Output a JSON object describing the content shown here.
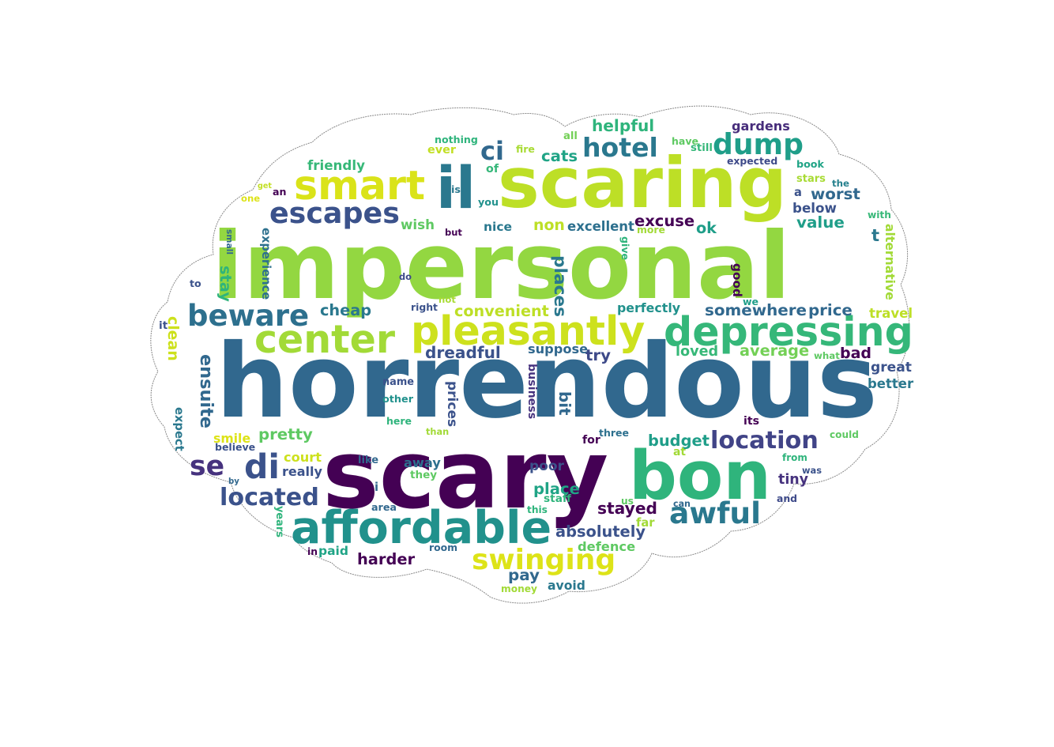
{
  "words": [
    {
      "text": "impersonal",
      "color": "#93d741",
      "rotation": 0
    },
    {
      "text": "horrendous",
      "color": "#31688e",
      "rotation": 0
    },
    {
      "text": "scary",
      "color": "#440154",
      "rotation": 0
    },
    {
      "text": "scaring",
      "color": "#bddf26",
      "rotation": 0
    },
    {
      "text": "il",
      "color": "#2a788e",
      "rotation": 0
    },
    {
      "text": "bon",
      "color": "#2fb47c",
      "rotation": 0
    },
    {
      "text": "affordable",
      "color": "#21918c",
      "rotation": 0
    },
    {
      "text": "pleasantly",
      "color": "#cde11d",
      "rotation": 0
    },
    {
      "text": "depressing",
      "color": "#35b779",
      "rotation": 0
    },
    {
      "text": "smart",
      "color": "#dae319",
      "rotation": 0
    },
    {
      "text": "center",
      "color": "#a2da37",
      "rotation": 0
    },
    {
      "text": "escapes",
      "color": "#3b528b",
      "rotation": 0
    },
    {
      "text": "dump",
      "color": "#1f9e89",
      "rotation": 0
    },
    {
      "text": "hotel",
      "color": "#2a788e",
      "rotation": 0
    },
    {
      "text": "beware",
      "color": "#2d708e",
      "rotation": 0
    },
    {
      "text": "awful",
      "color": "#2a788e",
      "rotation": 0
    },
    {
      "text": "location",
      "color": "#414487",
      "rotation": 0
    },
    {
      "text": "swinging",
      "color": "#dde318",
      "rotation": 0
    },
    {
      "text": "located",
      "color": "#3b528b",
      "rotation": 0
    },
    {
      "text": "di",
      "color": "#3b528b",
      "rotation": 0
    },
    {
      "text": "ensuite",
      "color": "#31688e",
      "rotation": 90
    },
    {
      "text": "se",
      "color": "#46327e",
      "rotation": 0
    },
    {
      "text": "ci",
      "color": "#31688e",
      "rotation": 0
    },
    {
      "text": "helpful",
      "color": "#2fb47c",
      "rotation": 0
    },
    {
      "text": "gardens",
      "color": "#472d7b",
      "rotation": 0
    },
    {
      "text": "nothing",
      "color": "#2fb47c",
      "rotation": 0
    },
    {
      "text": "all",
      "color": "#73d056",
      "rotation": 0
    },
    {
      "text": "have",
      "color": "#5ec962",
      "rotation": 0
    },
    {
      "text": "still",
      "color": "#35b779",
      "rotation": 0
    },
    {
      "text": "ever",
      "color": "#c2df23",
      "rotation": 0
    },
    {
      "text": "fire",
      "color": "#a8db34",
      "rotation": 0
    },
    {
      "text": "cats",
      "color": "#20a486",
      "rotation": 0
    },
    {
      "text": "expected",
      "color": "#3e4a89",
      "rotation": 0
    },
    {
      "text": "friendly",
      "color": "#37b878",
      "rotation": 0
    },
    {
      "text": "of",
      "color": "#35b779",
      "rotation": 0
    },
    {
      "text": "book",
      "color": "#20a486",
      "rotation": 0
    },
    {
      "text": "stars",
      "color": "#a8db34",
      "rotation": 0
    },
    {
      "text": "the",
      "color": "#26818e",
      "rotation": 0
    },
    {
      "text": "get",
      "color": "#c2df23",
      "rotation": 0
    },
    {
      "text": "an",
      "color": "#440154",
      "rotation": 0
    },
    {
      "text": "is",
      "color": "#2a788e",
      "rotation": 0
    },
    {
      "text": "you",
      "color": "#21918c",
      "rotation": 0
    },
    {
      "text": "one",
      "color": "#dde318",
      "rotation": 0
    },
    {
      "text": "a",
      "color": "#3b528b",
      "rotation": 0
    },
    {
      "text": "worst",
      "color": "#31688e",
      "rotation": 0
    },
    {
      "text": "below",
      "color": "#3b528b",
      "rotation": 0
    },
    {
      "text": "wish",
      "color": "#5ec962",
      "rotation": 0
    },
    {
      "text": "nice",
      "color": "#2a788e",
      "rotation": 0
    },
    {
      "text": "non",
      "color": "#bddf26",
      "rotation": 0
    },
    {
      "text": "excuse",
      "color": "#440154",
      "rotation": 0
    },
    {
      "text": "ok",
      "color": "#1f9e89",
      "rotation": 0
    },
    {
      "text": "value",
      "color": "#1f9e89",
      "rotation": 0
    },
    {
      "text": "with",
      "color": "#37b878",
      "rotation": 0
    },
    {
      "text": "small",
      "color": "#31688e",
      "rotation": 90
    },
    {
      "text": "but",
      "color": "#440154",
      "rotation": 0
    },
    {
      "text": "excellent",
      "color": "#2d708e",
      "rotation": 0
    },
    {
      "text": "more",
      "color": "#a2da37",
      "rotation": 0
    },
    {
      "text": "t",
      "color": "#2a788e",
      "rotation": 0
    },
    {
      "text": "alternative",
      "color": "#a2da37",
      "rotation": 90
    },
    {
      "text": "experience",
      "color": "#2d708e",
      "rotation": 90
    },
    {
      "text": "give",
      "color": "#2fb47c",
      "rotation": 90
    },
    {
      "text": "good",
      "color": "#440154",
      "rotation": 90
    },
    {
      "text": "to",
      "color": "#3b528b",
      "rotation": 0
    },
    {
      "text": "stay",
      "color": "#2fb47c",
      "rotation": 90
    },
    {
      "text": "do",
      "color": "#3e4a89",
      "rotation": 0
    },
    {
      "text": "places",
      "color": "#2a788e",
      "rotation": 90
    },
    {
      "text": "not",
      "color": "#a8db34",
      "rotation": 0
    },
    {
      "text": "right",
      "color": "#3b528b",
      "rotation": 0
    },
    {
      "text": "we",
      "color": "#1f9e89",
      "rotation": 0
    },
    {
      "text": "cheap",
      "color": "#2a788e",
      "rotation": 0
    },
    {
      "text": "convenient",
      "color": "#bddf26",
      "rotation": 0
    },
    {
      "text": "perfectly",
      "color": "#21918c",
      "rotation": 0
    },
    {
      "text": "somewhere",
      "color": "#31688e",
      "rotation": 0
    },
    {
      "text": "price",
      "color": "#31688e",
      "rotation": 0
    },
    {
      "text": "travel",
      "color": "#bddf26",
      "rotation": 0
    },
    {
      "text": "it",
      "color": "#3b528b",
      "rotation": 0
    },
    {
      "text": "clean",
      "color": "#cde11d",
      "rotation": 90
    },
    {
      "text": "dreadful",
      "color": "#3b528b",
      "rotation": 0
    },
    {
      "text": "suppose",
      "color": "#31688e",
      "rotation": 0
    },
    {
      "text": "try",
      "color": "#3e4a89",
      "rotation": 0
    },
    {
      "text": "loved",
      "color": "#37b878",
      "rotation": 0
    },
    {
      "text": "average",
      "color": "#73d056",
      "rotation": 0
    },
    {
      "text": "bad",
      "color": "#440154",
      "rotation": 0
    },
    {
      "text": "what",
      "color": "#5ec962",
      "rotation": 0
    },
    {
      "text": "great",
      "color": "#3b528b",
      "rotation": 0
    },
    {
      "text": "better",
      "color": "#2a788e",
      "rotation": 0
    },
    {
      "text": "name",
      "color": "#3b528b",
      "rotation": 0
    },
    {
      "text": "other",
      "color": "#21918c",
      "rotation": 0
    },
    {
      "text": "business",
      "color": "#46327e",
      "rotation": 90
    },
    {
      "text": "prices",
      "color": "#3b528b",
      "rotation": 90
    },
    {
      "text": "bit",
      "color": "#31688e",
      "rotation": 90
    },
    {
      "text": "here",
      "color": "#2fb47c",
      "rotation": 0
    },
    {
      "text": "its",
      "color": "#440154",
      "rotation": 0
    },
    {
      "text": "expect",
      "color": "#2a788e",
      "rotation": 90
    },
    {
      "text": "smile",
      "color": "#dde318",
      "rotation": 0
    },
    {
      "text": "pretty",
      "color": "#5ec962",
      "rotation": 0
    },
    {
      "text": "than",
      "color": "#a2da37",
      "rotation": 0
    },
    {
      "text": "for",
      "color": "#440154",
      "rotation": 0
    },
    {
      "text": "three",
      "color": "#2d708e",
      "rotation": 0
    },
    {
      "text": "budget",
      "color": "#1f9e89",
      "rotation": 0
    },
    {
      "text": "could",
      "color": "#5ec962",
      "rotation": 0
    },
    {
      "text": "believe",
      "color": "#3b528b",
      "rotation": 0
    },
    {
      "text": "court",
      "color": "#cde11d",
      "rotation": 0
    },
    {
      "text": "like",
      "color": "#31688e",
      "rotation": 0
    },
    {
      "text": "at",
      "color": "#a2da37",
      "rotation": 0
    },
    {
      "text": "from",
      "color": "#2fb47c",
      "rotation": 0
    },
    {
      "text": "really",
      "color": "#3b528b",
      "rotation": 0
    },
    {
      "text": "away",
      "color": "#2d708e",
      "rotation": 0
    },
    {
      "text": "poor",
      "color": "#3b528b",
      "rotation": 0
    },
    {
      "text": "tiny",
      "color": "#46327e",
      "rotation": 0
    },
    {
      "text": "was",
      "color": "#3b528b",
      "rotation": 0
    },
    {
      "text": "by",
      "color": "#31688e",
      "rotation": 0
    },
    {
      "text": "they",
      "color": "#5ec962",
      "rotation": 0
    },
    {
      "text": "i",
      "color": "#31688e",
      "rotation": 0
    },
    {
      "text": "place",
      "color": "#20a486",
      "rotation": 0
    },
    {
      "text": "staff",
      "color": "#2fb47c",
      "rotation": 0
    },
    {
      "text": "and",
      "color": "#3e4a89",
      "rotation": 0
    },
    {
      "text": "area",
      "color": "#31688e",
      "rotation": 0
    },
    {
      "text": "this",
      "color": "#2fb47c",
      "rotation": 0
    },
    {
      "text": "us",
      "color": "#5ec962",
      "rotation": 0
    },
    {
      "text": "can",
      "color": "#31688e",
      "rotation": 0
    },
    {
      "text": "stayed",
      "color": "#440154",
      "rotation": 0
    },
    {
      "text": "years",
      "color": "#2fb47c",
      "rotation": 90
    },
    {
      "text": "far",
      "color": "#a2da37",
      "rotation": 0
    },
    {
      "text": "absolutely",
      "color": "#3b528b",
      "rotation": 0
    },
    {
      "text": "in",
      "color": "#440154",
      "rotation": 0
    },
    {
      "text": "paid",
      "color": "#20a486",
      "rotation": 0
    },
    {
      "text": "room",
      "color": "#31688e",
      "rotation": 0
    },
    {
      "text": "defence",
      "color": "#5ec962",
      "rotation": 0
    },
    {
      "text": "harder",
      "color": "#440154",
      "rotation": 0
    },
    {
      "text": "pay",
      "color": "#31688e",
      "rotation": 0
    },
    {
      "text": "money",
      "color": "#a2da37",
      "rotation": 0
    },
    {
      "text": "avoid",
      "color": "#2a788e",
      "rotation": 0
    }
  ]
}
